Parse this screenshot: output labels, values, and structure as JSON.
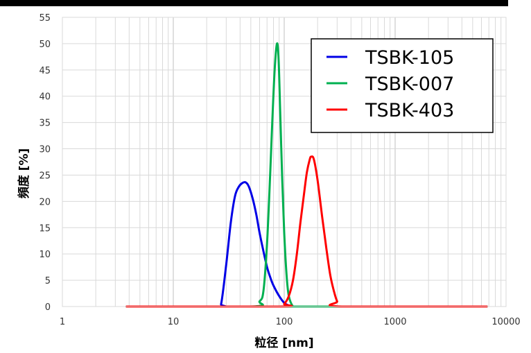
{
  "chart_data": {
    "type": "line",
    "title": "",
    "xlabel": "粒径 [nm]",
    "ylabel": "頻度 [%]",
    "x_scale": "log",
    "xlim": [
      1,
      10000
    ],
    "ylim": [
      0,
      55
    ],
    "x_tick_labels": [
      "1",
      "10",
      "100",
      "1000",
      "10000"
    ],
    "y_tick_labels": [
      "0",
      "5",
      "10",
      "15",
      "20",
      "25",
      "30",
      "35",
      "40",
      "45",
      "50",
      "55"
    ],
    "grid": true,
    "legend_position": "top-right",
    "series": [
      {
        "name": "TSBK-105",
        "color": "#0000e6",
        "x": [
          3.8,
          25,
          27,
          30,
          33,
          36,
          39,
          42,
          45,
          48,
          52,
          56,
          60,
          65,
          70,
          75,
          80,
          90,
          100,
          110,
          120,
          130,
          6700
        ],
        "y": [
          0,
          0,
          0.5,
          8,
          16,
          21,
          22.8,
          23.5,
          23.6,
          22.8,
          20.5,
          17.5,
          14,
          10.5,
          7.5,
          5.5,
          4,
          2,
          0.7,
          0.2,
          0,
          0,
          0
        ]
      },
      {
        "name": "TSBK-007",
        "color": "#00b050",
        "x": [
          3.8,
          50,
          60,
          65,
          70,
          75,
          78,
          82,
          86,
          89,
          92,
          96,
          100,
          105,
          110,
          120,
          130,
          6700
        ],
        "y": [
          0,
          0,
          1,
          3,
          12,
          26,
          35,
          45,
          50,
          47,
          37,
          24,
          14,
          6,
          2,
          0,
          0,
          0
        ]
      },
      {
        "name": "TSBK-403",
        "color": "#ff0000",
        "x": [
          3.8,
          90,
          100,
          110,
          120,
          130,
          140,
          150,
          160,
          170,
          175,
          185,
          200,
          220,
          240,
          260,
          280,
          300,
          330,
          6700
        ],
        "y": [
          0,
          0,
          0.5,
          2,
          5,
          10,
          16,
          21,
          25.5,
          28,
          28.5,
          28,
          24,
          17,
          11,
          6,
          3,
          1,
          0,
          0
        ]
      }
    ]
  }
}
